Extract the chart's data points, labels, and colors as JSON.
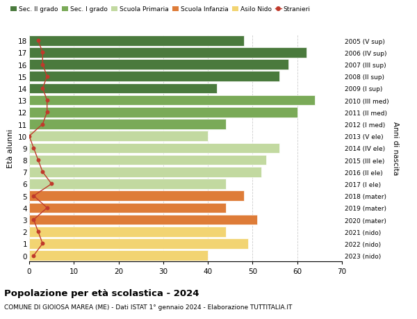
{
  "ages": [
    18,
    17,
    16,
    15,
    14,
    13,
    12,
    11,
    10,
    9,
    8,
    7,
    6,
    5,
    4,
    3,
    2,
    1,
    0
  ],
  "values": [
    48,
    62,
    58,
    56,
    42,
    64,
    60,
    44,
    40,
    56,
    53,
    52,
    44,
    48,
    44,
    51,
    44,
    49,
    40
  ],
  "stranieri": [
    2,
    3,
    3,
    4,
    3,
    4,
    4,
    3,
    0,
    1,
    2,
    3,
    5,
    1,
    4,
    1,
    2,
    3,
    1
  ],
  "right_labels": [
    "2005 (V sup)",
    "2006 (IV sup)",
    "2007 (III sup)",
    "2008 (II sup)",
    "2009 (I sup)",
    "2010 (III med)",
    "2011 (II med)",
    "2012 (I med)",
    "2013 (V ele)",
    "2014 (IV ele)",
    "2015 (III ele)",
    "2016 (II ele)",
    "2017 (I ele)",
    "2018 (mater)",
    "2019 (mater)",
    "2020 (mater)",
    "2021 (nido)",
    "2022 (nido)",
    "2023 (nido)"
  ],
  "bar_colors": [
    "#4a7a3d",
    "#4a7a3d",
    "#4a7a3d",
    "#4a7a3d",
    "#4a7a3d",
    "#7aaa58",
    "#7aaa58",
    "#7aaa58",
    "#c2d9a0",
    "#c2d9a0",
    "#c2d9a0",
    "#c2d9a0",
    "#c2d9a0",
    "#de7c38",
    "#de7c38",
    "#de7c38",
    "#f2d472",
    "#f2d472",
    "#f2d472"
  ],
  "legend_labels": [
    "Sec. II grado",
    "Sec. I grado",
    "Scuola Primaria",
    "Scuola Infanzia",
    "Asilo Nido",
    "Stranieri"
  ],
  "legend_colors": [
    "#4a7a3d",
    "#7aaa58",
    "#c2d9a0",
    "#de7c38",
    "#f2d472",
    "#c0392b"
  ],
  "stranieri_color": "#c0392b",
  "ylabel": "Età alunni",
  "right_ylabel": "Anni di nascita",
  "title": "Popolazione per età scolastica - 2024",
  "subtitle": "COMUNE DI GIOIOSA MAREA (ME) - Dati ISTAT 1° gennaio 2024 - Elaborazione TUTTITALIA.IT",
  "xlim": [
    0,
    70
  ],
  "xticks": [
    0,
    10,
    20,
    30,
    40,
    50,
    60,
    70
  ],
  "background_color": "#ffffff",
  "grid_color": "#cccccc"
}
